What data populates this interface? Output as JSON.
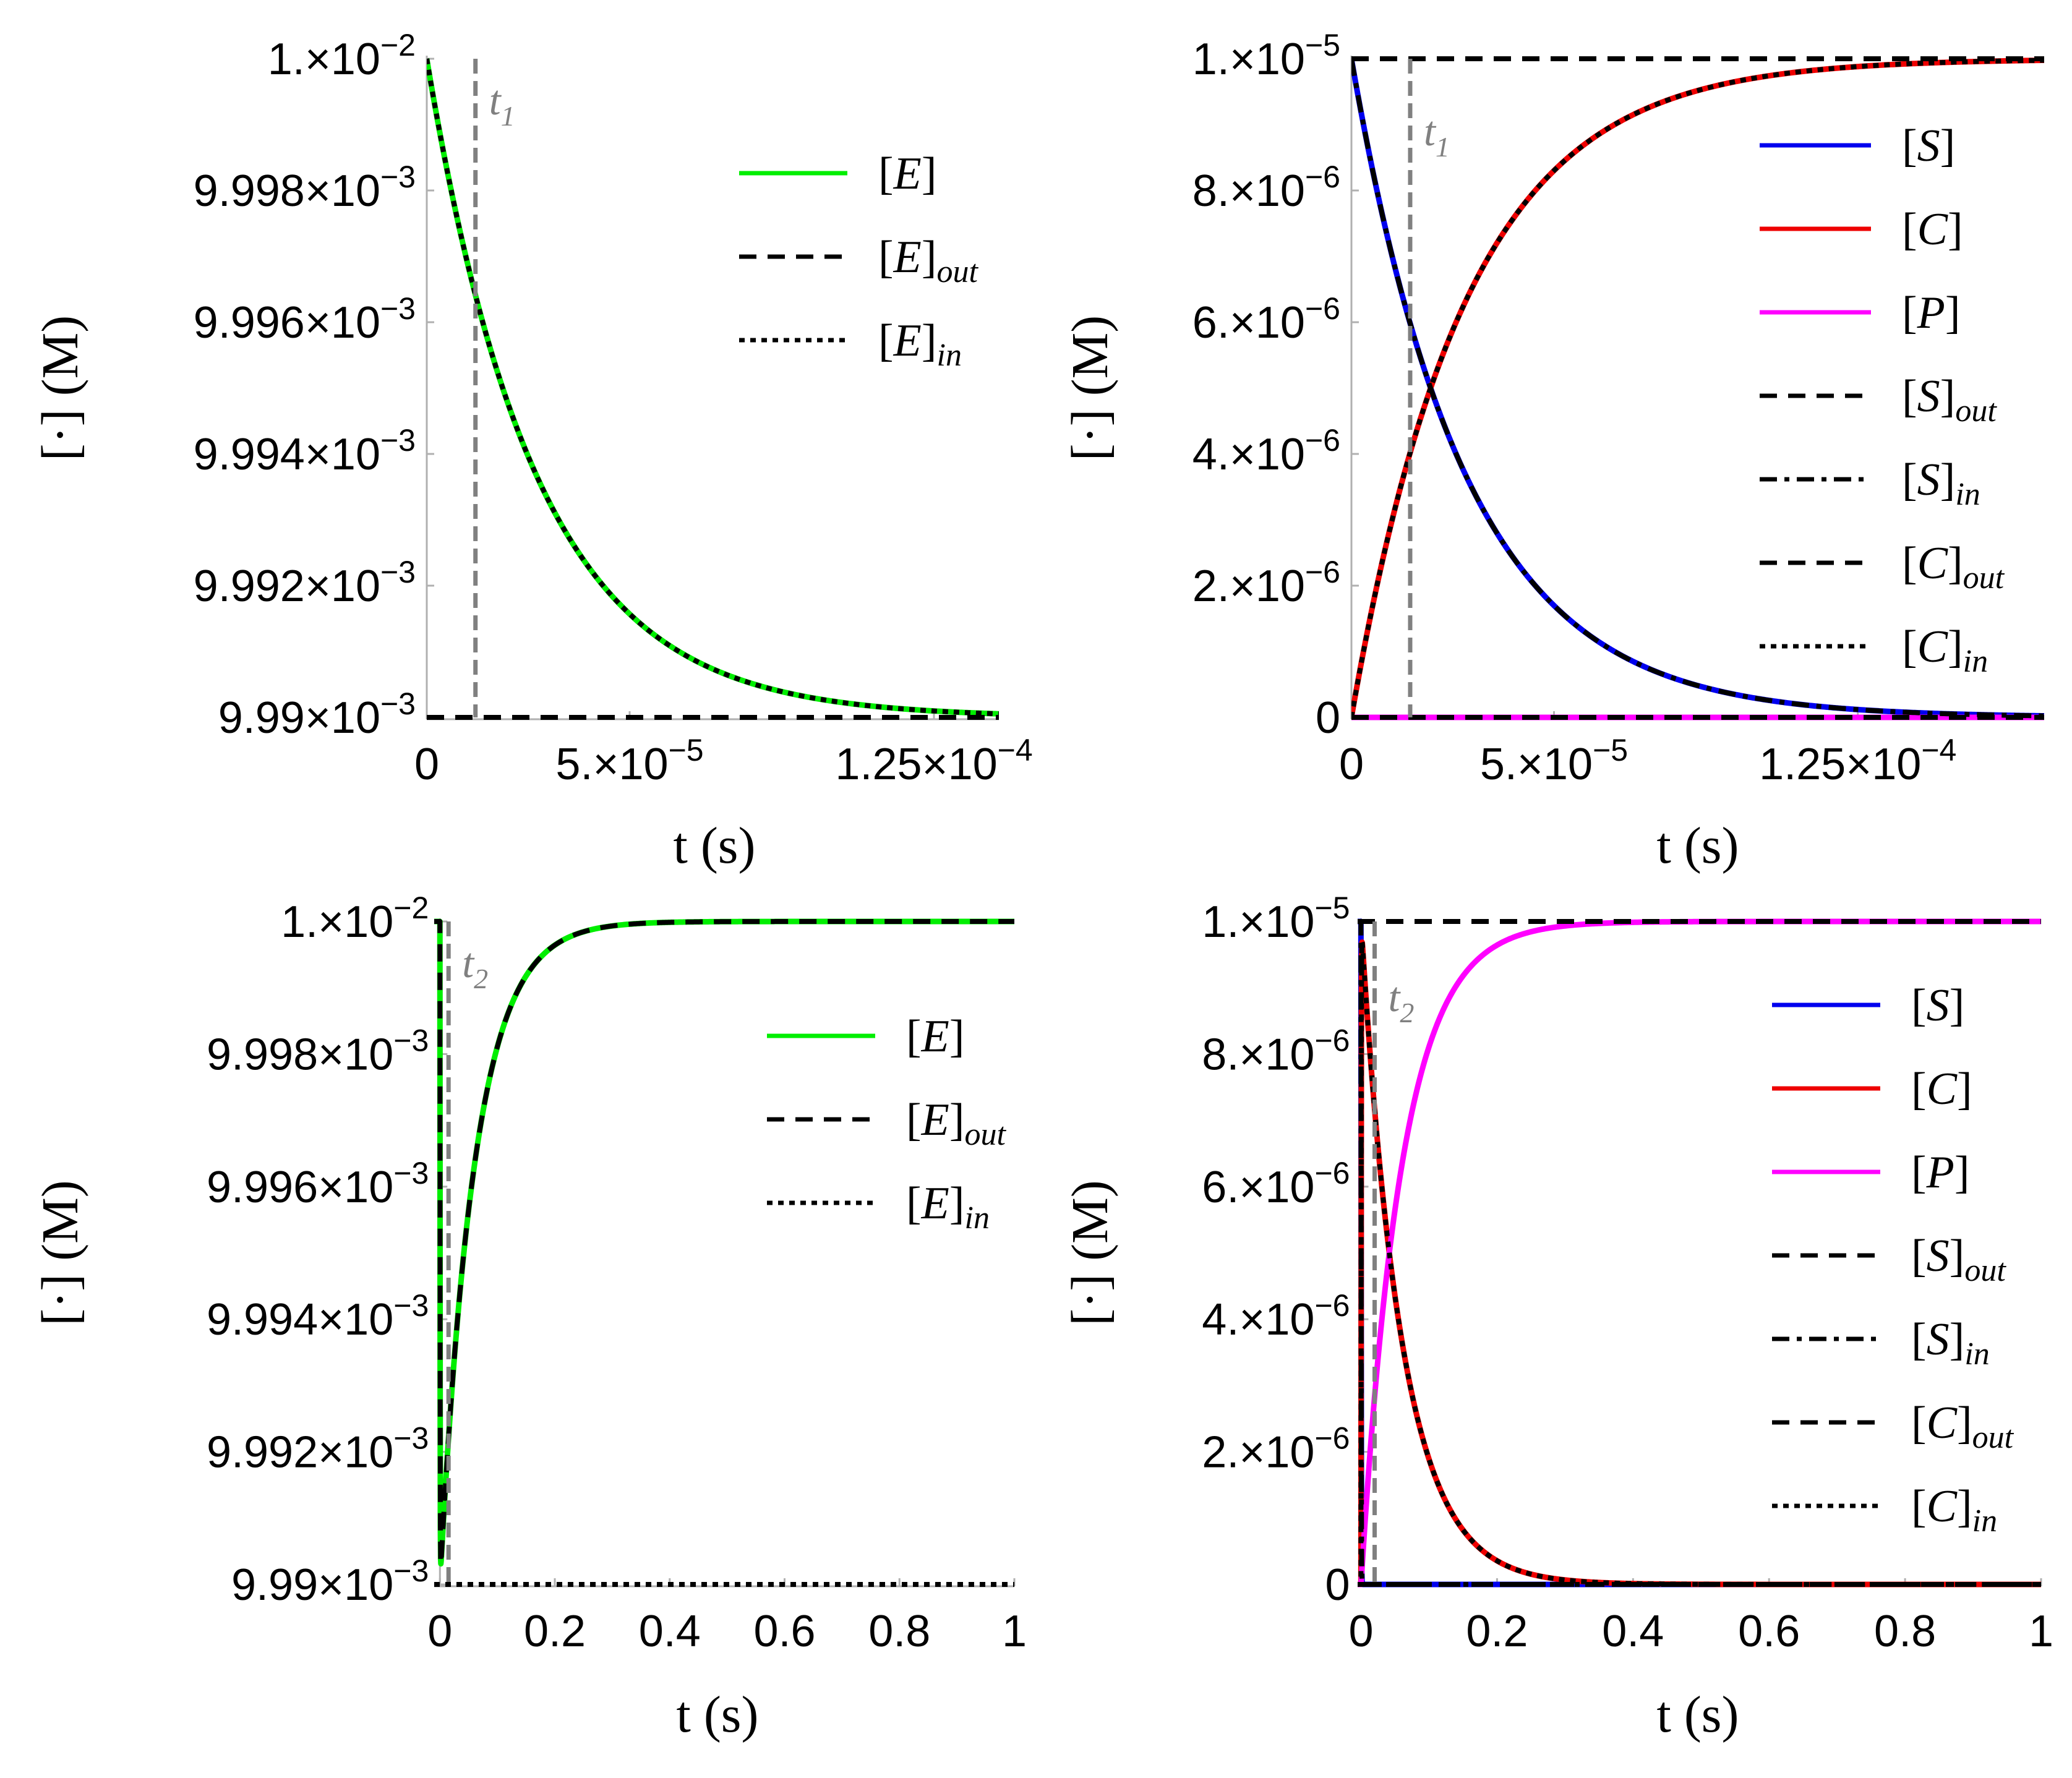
{
  "chart_data": [
    {
      "type": "line",
      "xlabel": "t (s)",
      "ylabel": "[·] (M)",
      "xlim": [
        0,
        0.000141
      ],
      "ylim": [
        0.00999,
        0.01
      ],
      "x_ticks": [
        {
          "value": 0,
          "label": "0"
        },
        {
          "value": 5e-05,
          "label": "5.×10",
          "exp": "−5"
        },
        {
          "value": 0.000125,
          "label": "1.25×10",
          "exp": "−4"
        }
      ],
      "y_ticks": [
        {
          "value": 0.01,
          "label": "1.×10",
          "exp": "−2"
        },
        {
          "value": 0.009998,
          "label": "9.998×10",
          "exp": "−3"
        },
        {
          "value": 0.009996,
          "label": "9.996×10",
          "exp": "−3"
        },
        {
          "value": 0.009994,
          "label": "9.994×10",
          "exp": "−3"
        },
        {
          "value": 0.009992,
          "label": "9.992×10",
          "exp": "−3"
        },
        {
          "value": 0.00999,
          "label": "9.99×10",
          "exp": "−3"
        }
      ],
      "vline": {
        "x": 1.2e-05,
        "label": "t",
        "sub": "1"
      },
      "series": [
        {
          "name": "[E]",
          "sub": "",
          "color": "#00ee00",
          "style": "solid",
          "func": "decay",
          "y0": 0.01,
          "yinf": 0.00999,
          "tau": 2.7e-05
        },
        {
          "name": "[E]",
          "sub": "out",
          "color": "#000000",
          "style": "dashed",
          "func": "const",
          "value": 0.00999
        },
        {
          "name": "[E]",
          "sub": "in",
          "color": "#000000",
          "style": "dotted",
          "func": "decay",
          "y0": 0.01,
          "yinf": 0.00999,
          "tau": 2.7e-05
        }
      ]
    },
    {
      "type": "line",
      "xlabel": "t (s)",
      "ylabel": "[·] (M)",
      "xlim": [
        0,
        0.000171
      ],
      "ylim": [
        0,
        1e-05
      ],
      "x_ticks": [
        {
          "value": 0,
          "label": "0"
        },
        {
          "value": 5e-05,
          "label": "5.×10",
          "exp": "−5"
        },
        {
          "value": 0.000125,
          "label": "1.25×10",
          "exp": "−4"
        }
      ],
      "y_ticks": [
        {
          "value": 1e-05,
          "label": "1.×10",
          "exp": "−5"
        },
        {
          "value": 8e-06,
          "label": "8.×10",
          "exp": "−6"
        },
        {
          "value": 6e-06,
          "label": "6.×10",
          "exp": "−6"
        },
        {
          "value": 4e-06,
          "label": "4.×10",
          "exp": "−6"
        },
        {
          "value": 2e-06,
          "label": "2.×10",
          "exp": "−6"
        },
        {
          "value": 0,
          "label": "0"
        }
      ],
      "vline": {
        "x": 1.45e-05,
        "label": "t",
        "sub": "1"
      },
      "series": [
        {
          "name": "[S]",
          "sub": "",
          "color": "#0000ee",
          "style": "solid",
          "func": "decay",
          "y0": 1e-05,
          "yinf": 0,
          "tau": 2.82e-05
        },
        {
          "name": "[C]",
          "sub": "",
          "color": "#ee0000",
          "style": "solid",
          "func": "rise",
          "y0": 0,
          "yinf": 1e-05,
          "tau": 2.82e-05
        },
        {
          "name": "[P]",
          "sub": "",
          "color": "#ff00ff",
          "style": "solid",
          "func": "const",
          "value": 0
        },
        {
          "name": "[S]",
          "sub": "out",
          "color": "#000000",
          "style": "dashed",
          "func": "const",
          "value": 1e-05
        },
        {
          "name": "[S]",
          "sub": "in",
          "color": "#000000",
          "style": "dashdot",
          "func": "decay",
          "y0": 1e-05,
          "yinf": 0,
          "tau": 2.82e-05
        },
        {
          "name": "[C]",
          "sub": "out",
          "color": "#000000",
          "style": "dashed",
          "func": "const",
          "value": 0
        },
        {
          "name": "[C]",
          "sub": "in",
          "color": "#000000",
          "style": "dotted",
          "func": "rise",
          "y0": 0,
          "yinf": 1e-05,
          "tau": 2.82e-05
        }
      ]
    },
    {
      "type": "line",
      "xlabel": "t (s)",
      "ylabel": "[·] (M)",
      "xlim": [
        -0.01,
        1
      ],
      "ylim": [
        0.00999,
        0.01
      ],
      "x_ticks": [
        {
          "value": 0,
          "label": "0"
        },
        {
          "value": 0.2,
          "label": "0.2"
        },
        {
          "value": 0.4,
          "label": "0.4"
        },
        {
          "value": 0.6,
          "label": "0.6"
        },
        {
          "value": 0.8,
          "label": "0.8"
        },
        {
          "value": 1,
          "label": "1"
        }
      ],
      "y_ticks": [
        {
          "value": 0.01,
          "label": "1.×10",
          "exp": "−2"
        },
        {
          "value": 0.009998,
          "label": "9.998×10",
          "exp": "−3"
        },
        {
          "value": 0.009996,
          "label": "9.996×10",
          "exp": "−3"
        },
        {
          "value": 0.009994,
          "label": "9.994×10",
          "exp": "−3"
        },
        {
          "value": 0.009992,
          "label": "9.992×10",
          "exp": "−3"
        },
        {
          "value": 0.00999,
          "label": "9.99×10",
          "exp": "−3"
        }
      ],
      "vline": {
        "x": 0.015,
        "label": "t",
        "sub": "2"
      },
      "series": [
        {
          "name": "[E]",
          "sub": "",
          "color": "#00ee00",
          "style": "solid",
          "func": "dip",
          "y0": 0.01,
          "ymin": 0.00999,
          "yinf": 0.01,
          "tau_fast": 0.0003,
          "tau": 0.06
        },
        {
          "name": "[E]",
          "sub": "out",
          "color": "#000000",
          "style": "dashed",
          "func": "dip",
          "y0": 0.01,
          "ymin": 0.00999,
          "yinf": 0.01,
          "tau_fast": 0.0003,
          "tau": 0.06
        },
        {
          "name": "[E]",
          "sub": "in",
          "color": "#000000",
          "style": "dotted",
          "func": "const",
          "value": 0.00999
        }
      ]
    },
    {
      "type": "line",
      "xlabel": "t (s)",
      "ylabel": "[·] (M)",
      "xlim": [
        -0.005,
        1
      ],
      "ylim": [
        0,
        1e-05
      ],
      "x_ticks": [
        {
          "value": 0,
          "label": "0"
        },
        {
          "value": 0.2,
          "label": "0.2"
        },
        {
          "value": 0.4,
          "label": "0.4"
        },
        {
          "value": 0.6,
          "label": "0.6"
        },
        {
          "value": 0.8,
          "label": "0.8"
        },
        {
          "value": 1,
          "label": "1"
        }
      ],
      "y_ticks": [
        {
          "value": 1e-05,
          "label": "1.×10",
          "exp": "−5"
        },
        {
          "value": 8e-06,
          "label": "8.×10",
          "exp": "−6"
        },
        {
          "value": 6e-06,
          "label": "6.×10",
          "exp": "−6"
        },
        {
          "value": 4e-06,
          "label": "4.×10",
          "exp": "−6"
        },
        {
          "value": 2e-06,
          "label": "2.×10",
          "exp": "−6"
        },
        {
          "value": 0,
          "label": "0"
        }
      ],
      "vline": {
        "x": 0.02,
        "label": "t",
        "sub": "2"
      },
      "series": [
        {
          "name": "[S]",
          "sub": "",
          "color": "#0000ee",
          "style": "solid",
          "func": "decay",
          "y0": 1e-05,
          "yinf": 0,
          "tau": 0.0003
        },
        {
          "name": "[C]",
          "sub": "",
          "color": "#ee0000",
          "style": "solid",
          "func": "risedecay",
          "peak": 1e-05,
          "tau_fast": 0.0003,
          "tau": 0.06
        },
        {
          "name": "[P]",
          "sub": "",
          "color": "#ff00ff",
          "style": "solid",
          "func": "rise",
          "y0": 0,
          "yinf": 1e-05,
          "tau": 0.06
        },
        {
          "name": "[S]",
          "sub": "out",
          "color": "#000000",
          "style": "dashed",
          "func": "const",
          "value": 1e-05
        },
        {
          "name": "[S]",
          "sub": "in",
          "color": "#000000",
          "style": "dashdot",
          "func": "decay",
          "y0": 1e-05,
          "yinf": 0,
          "tau": 0.0003
        },
        {
          "name": "[C]",
          "sub": "out",
          "color": "#000000",
          "style": "dashed",
          "func": "const",
          "value": 0
        },
        {
          "name": "[C]",
          "sub": "in",
          "color": "#000000",
          "style": "dotted",
          "func": "risedecay",
          "peak": 1e-05,
          "tau_fast": 0.0003,
          "tau": 0.06
        }
      ]
    }
  ]
}
